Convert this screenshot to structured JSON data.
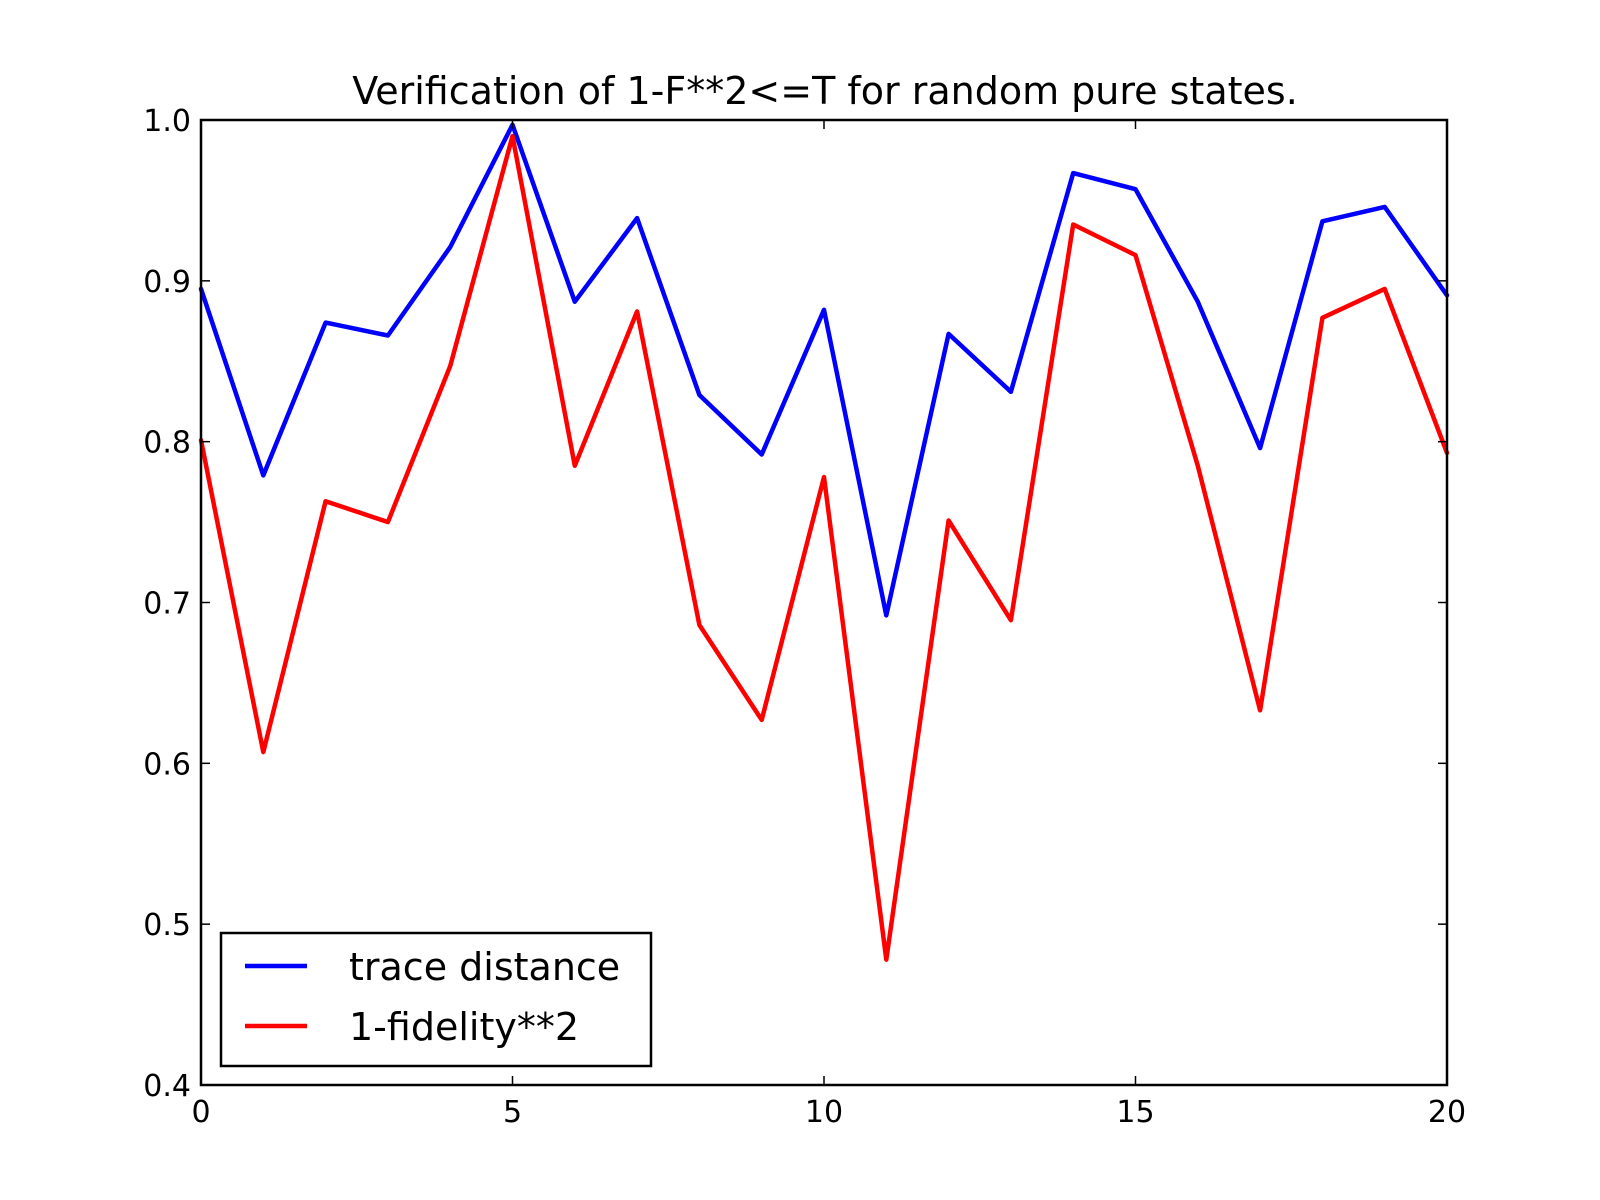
{
  "chart_data": {
    "type": "line",
    "title": "Verification of 1-F**2<=T for random pure states.",
    "xlabel": "",
    "ylabel": "",
    "xlim": [
      0,
      20
    ],
    "ylim": [
      0.4,
      1.0
    ],
    "xticks": [
      0,
      5,
      10,
      15,
      20
    ],
    "xtick_labels": [
      "0",
      "5",
      "10",
      "15",
      "20"
    ],
    "yticks": [
      0.4,
      0.5,
      0.6,
      0.7,
      0.8,
      0.9,
      1.0
    ],
    "ytick_labels": [
      "0.4",
      "0.5",
      "0.6",
      "0.7",
      "0.8",
      "0.9",
      "1.0"
    ],
    "grid": false,
    "legend_position": "lower-left",
    "x": [
      0,
      1,
      2,
      3,
      4,
      5,
      6,
      7,
      8,
      9,
      10,
      11,
      12,
      13,
      14,
      15,
      16,
      17,
      18,
      19,
      20
    ],
    "series": [
      {
        "name": "trace distance",
        "color": "#0000ff",
        "values": [
          0.895,
          0.779,
          0.874,
          0.866,
          0.921,
          0.997,
          0.887,
          0.939,
          0.829,
          0.792,
          0.882,
          0.692,
          0.867,
          0.831,
          0.967,
          0.957,
          0.887,
          0.796,
          0.937,
          0.946,
          0.891
        ]
      },
      {
        "name": "1-fidelity**2",
        "color": "#ff0000",
        "values": [
          0.801,
          0.607,
          0.763,
          0.75,
          0.847,
          0.99,
          0.785,
          0.881,
          0.686,
          0.627,
          0.778,
          0.478,
          0.751,
          0.689,
          0.935,
          0.916,
          0.785,
          0.633,
          0.877,
          0.895,
          0.793
        ]
      }
    ]
  }
}
